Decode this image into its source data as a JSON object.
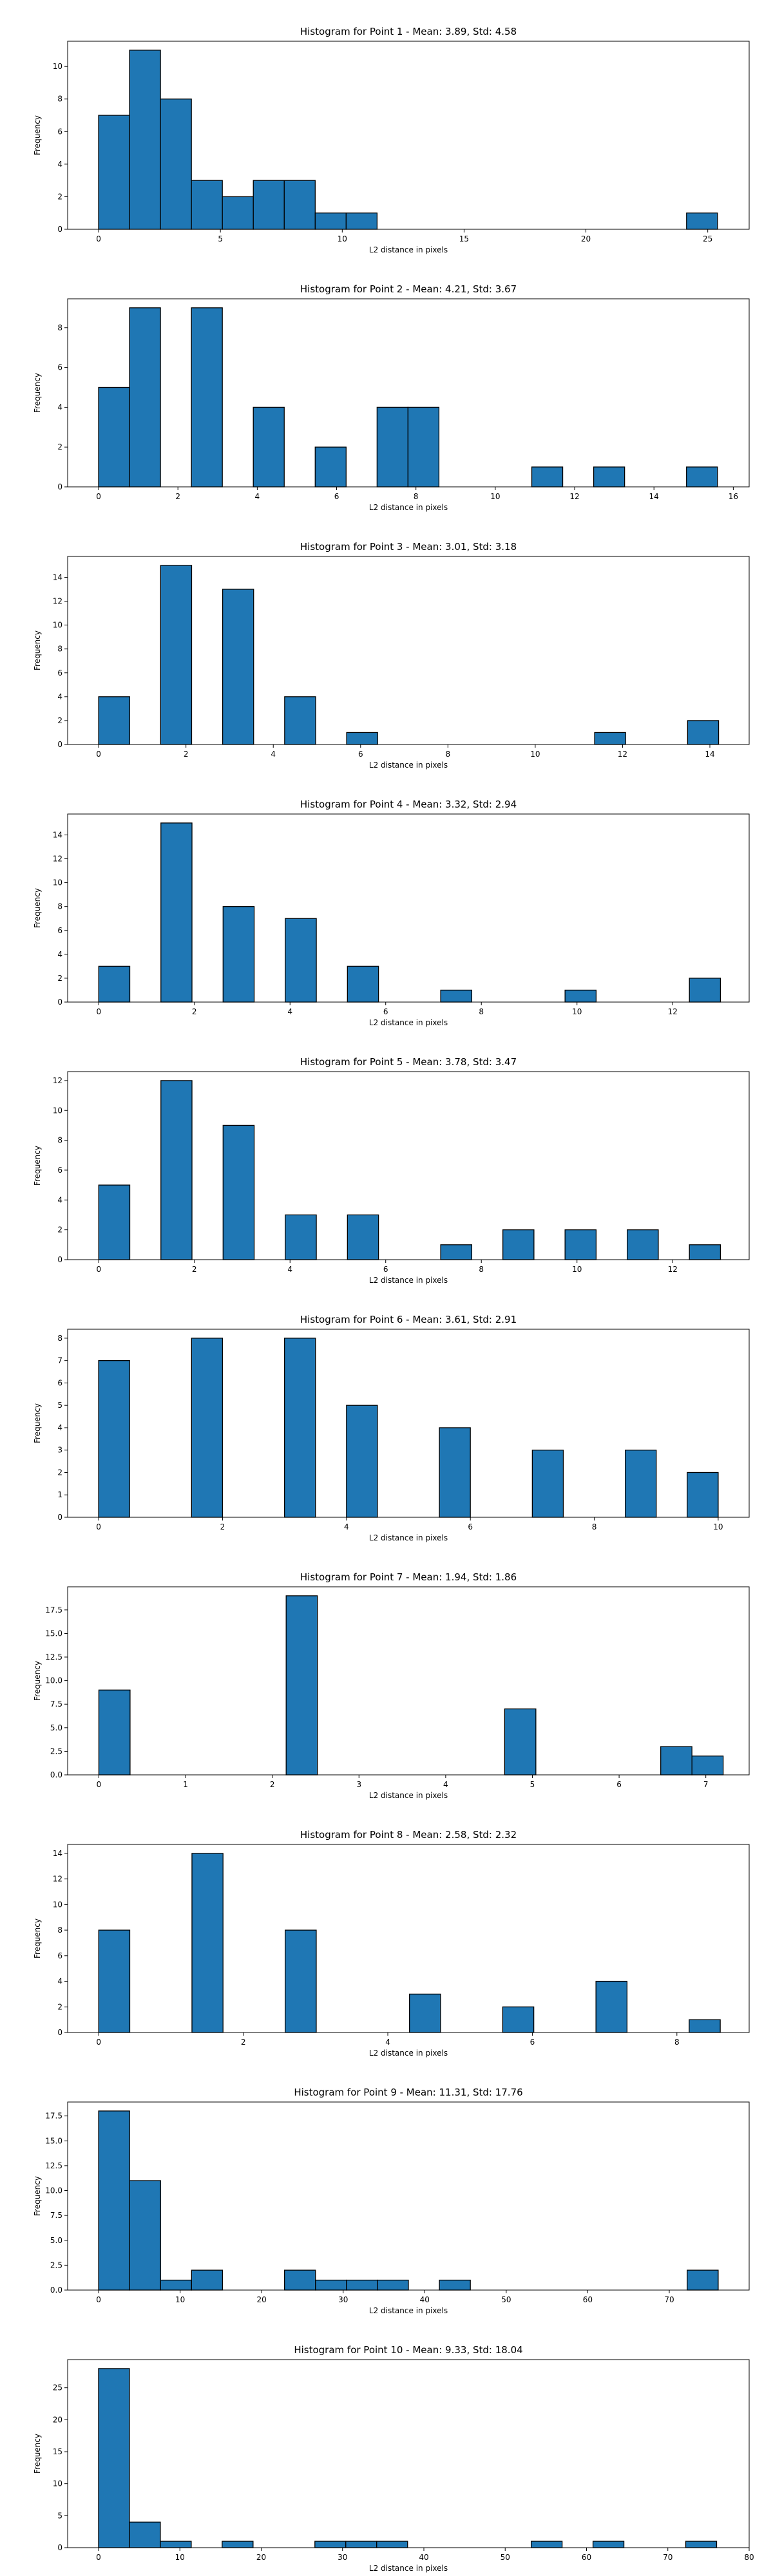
{
  "style": {
    "bar_fill": "#1f77b4",
    "bar_edge": "#000000",
    "axes_color": "#000000"
  },
  "chart_data": [
    {
      "type": "bar",
      "title": "Histogram for Point 1 - Mean: 3.89, Std: 4.58",
      "xlabel": "L2 distance in pixels",
      "ylabel": "Frequency",
      "xlim": [
        -1.27,
        26.7
      ],
      "ylim": [
        0,
        11.55
      ],
      "xticks": [
        0,
        5,
        10,
        15,
        20,
        25
      ],
      "xtick_labels": [
        "0",
        "5",
        "10",
        "15",
        "20",
        "25"
      ],
      "yticks": [
        0,
        2,
        4,
        6,
        8,
        10
      ],
      "ytick_labels": [
        "0",
        "2",
        "4",
        "6",
        "8",
        "10"
      ],
      "bin_start": 0.0,
      "bin_width": 1.27,
      "values": [
        7,
        11,
        8,
        3,
        2,
        3,
        3,
        1,
        1,
        0,
        0,
        0,
        0,
        0,
        0,
        0,
        0,
        0,
        0,
        1
      ]
    },
    {
      "type": "bar",
      "title": "Histogram for Point 2 - Mean: 4.21, Std: 3.67",
      "xlabel": "L2 distance in pixels",
      "ylabel": "Frequency",
      "xlim": [
        -0.78,
        16.4
      ],
      "ylim": [
        0,
        9.45
      ],
      "xticks": [
        0,
        2,
        4,
        6,
        8,
        10,
        12,
        14,
        16
      ],
      "xtick_labels": [
        "0",
        "2",
        "4",
        "6",
        "8",
        "10",
        "12",
        "14",
        "16"
      ],
      "yticks": [
        0,
        2,
        4,
        6,
        8
      ],
      "ytick_labels": [
        "0",
        "2",
        "4",
        "6",
        "8"
      ],
      "bin_start": 0.0,
      "bin_width": 0.78,
      "values": [
        5,
        9,
        0,
        9,
        0,
        4,
        0,
        2,
        0,
        4,
        4,
        0,
        0,
        0,
        1,
        0,
        1,
        0,
        0,
        1
      ]
    },
    {
      "type": "bar",
      "title": "Histogram for Point 3 - Mean: 3.01, Std: 3.18",
      "xlabel": "L2 distance in pixels",
      "ylabel": "Frequency",
      "xlim": [
        -0.71,
        14.9
      ],
      "ylim": [
        0,
        15.75
      ],
      "xticks": [
        0,
        2,
        4,
        6,
        8,
        10,
        12,
        14
      ],
      "xtick_labels": [
        "0",
        "2",
        "4",
        "6",
        "8",
        "10",
        "12",
        "14"
      ],
      "yticks": [
        0,
        2,
        4,
        6,
        8,
        10,
        12,
        14
      ],
      "ytick_labels": [
        "0",
        "2",
        "4",
        "6",
        "8",
        "10",
        "12",
        "14"
      ],
      "bin_start": 0.0,
      "bin_width": 0.71,
      "values": [
        4,
        0,
        15,
        0,
        13,
        0,
        4,
        0,
        1,
        0,
        0,
        0,
        0,
        0,
        0,
        0,
        1,
        0,
        0,
        2
      ]
    },
    {
      "type": "bar",
      "title": "Histogram for Point 4 - Mean: 3.32, Std: 2.94",
      "xlabel": "L2 distance in pixels",
      "ylabel": "Frequency",
      "xlim": [
        -0.65,
        13.6
      ],
      "ylim": [
        0,
        15.75
      ],
      "xticks": [
        0,
        2,
        4,
        6,
        8,
        10,
        12
      ],
      "xtick_labels": [
        "0",
        "2",
        "4",
        "6",
        "8",
        "10",
        "12"
      ],
      "yticks": [
        0,
        2,
        4,
        6,
        8,
        10,
        12,
        14
      ],
      "ytick_labels": [
        "0",
        "2",
        "4",
        "6",
        "8",
        "10",
        "12",
        "14"
      ],
      "bin_start": 0.0,
      "bin_width": 0.65,
      "values": [
        3,
        0,
        15,
        0,
        8,
        0,
        7,
        0,
        3,
        0,
        0,
        1,
        0,
        0,
        0,
        1,
        0,
        0,
        0,
        2
      ]
    },
    {
      "type": "bar",
      "title": "Histogram for Point 5 - Mean: 3.78, Std: 3.47",
      "xlabel": "L2 distance in pixels",
      "ylabel": "Frequency",
      "xlim": [
        -0.65,
        13.6
      ],
      "ylim": [
        0,
        12.6
      ],
      "xticks": [
        0,
        2,
        4,
        6,
        8,
        10,
        12
      ],
      "xtick_labels": [
        "0",
        "2",
        "4",
        "6",
        "8",
        "10",
        "12"
      ],
      "yticks": [
        0,
        2,
        4,
        6,
        8,
        10,
        12
      ],
      "ytick_labels": [
        "0",
        "2",
        "4",
        "6",
        "8",
        "10",
        "12"
      ],
      "bin_start": 0.0,
      "bin_width": 0.65,
      "values": [
        5,
        0,
        12,
        0,
        9,
        0,
        3,
        0,
        3,
        0,
        0,
        1,
        0,
        2,
        0,
        2,
        0,
        2,
        0,
        1
      ]
    },
    {
      "type": "bar",
      "title": "Histogram for Point 6 - Mean: 3.61, Std: 2.91",
      "xlabel": "L2 distance in pixels",
      "ylabel": "Frequency",
      "xlim": [
        -0.5,
        10.5
      ],
      "ylim": [
        0,
        8.4
      ],
      "xticks": [
        0,
        2,
        4,
        6,
        8,
        10
      ],
      "xtick_labels": [
        "0",
        "2",
        "4",
        "6",
        "8",
        "10"
      ],
      "yticks": [
        0,
        1,
        2,
        3,
        4,
        5,
        6,
        7,
        8
      ],
      "ytick_labels": [
        "0",
        "1",
        "2",
        "3",
        "4",
        "5",
        "6",
        "7",
        "8"
      ],
      "bin_start": 0.0,
      "bin_width": 0.5,
      "values": [
        7,
        0,
        0,
        8,
        0,
        0,
        8,
        0,
        5,
        0,
        0,
        4,
        0,
        0,
        3,
        0,
        0,
        3,
        0,
        2
      ]
    },
    {
      "type": "bar",
      "title": "Histogram for Point 7 - Mean: 1.94, Std: 1.86",
      "xlabel": "L2 distance in pixels",
      "ylabel": "Frequency",
      "xlim": [
        -0.36,
        7.5
      ],
      "ylim": [
        0,
        19.95
      ],
      "xticks": [
        0,
        1,
        2,
        3,
        4,
        5,
        6,
        7
      ],
      "xtick_labels": [
        "0",
        "1",
        "2",
        "3",
        "4",
        "5",
        "6",
        "7"
      ],
      "yticks": [
        0,
        2.5,
        5,
        7.5,
        10,
        12.5,
        15,
        17.5
      ],
      "ytick_labels": [
        "0.0",
        "2.5",
        "5.0",
        "7.5",
        "10.0",
        "12.5",
        "15.0",
        "17.5"
      ],
      "bin_start": 0.0,
      "bin_width": 0.36,
      "values": [
        9,
        0,
        0,
        0,
        0,
        0,
        19,
        0,
        0,
        0,
        0,
        0,
        0,
        7,
        0,
        0,
        0,
        0,
        3,
        2
      ]
    },
    {
      "type": "bar",
      "title": "Histogram for Point 8 - Mean: 2.58, Std: 2.32",
      "xlabel": "L2 distance in pixels",
      "ylabel": "Frequency",
      "xlim": [
        -0.43,
        9.0
      ],
      "ylim": [
        0,
        14.7
      ],
      "xticks": [
        0,
        2,
        4,
        6,
        8
      ],
      "xtick_labels": [
        "0",
        "2",
        "4",
        "6",
        "8"
      ],
      "yticks": [
        0,
        2,
        4,
        6,
        8,
        10,
        12,
        14
      ],
      "ytick_labels": [
        "0",
        "2",
        "4",
        "6",
        "8",
        "10",
        "12",
        "14"
      ],
      "bin_start": 0.0,
      "bin_width": 0.43,
      "values": [
        8,
        0,
        0,
        14,
        0,
        0,
        8,
        0,
        0,
        0,
        3,
        0,
        0,
        2,
        0,
        0,
        4,
        0,
        0,
        1
      ]
    },
    {
      "type": "bar",
      "title": "Histogram for Point 9 - Mean: 11.31, Std: 17.76",
      "xlabel": "L2 distance in pixels",
      "ylabel": "Frequency",
      "xlim": [
        -3.8,
        79.8
      ],
      "ylim": [
        0,
        18.9
      ],
      "xticks": [
        0,
        10,
        20,
        30,
        40,
        50,
        60,
        70
      ],
      "xtick_labels": [
        "0",
        "10",
        "20",
        "30",
        "40",
        "50",
        "60",
        "70"
      ],
      "yticks": [
        0,
        2.5,
        5,
        7.5,
        10,
        12.5,
        15,
        17.5
      ],
      "ytick_labels": [
        "0.0",
        "2.5",
        "5.0",
        "7.5",
        "10.0",
        "12.5",
        "15.0",
        "17.5"
      ],
      "bin_start": 0.0,
      "bin_width": 3.8,
      "values": [
        18,
        11,
        1,
        2,
        0,
        0,
        2,
        1,
        1,
        1,
        0,
        1,
        0,
        0,
        0,
        0,
        0,
        0,
        0,
        2
      ]
    },
    {
      "type": "bar",
      "title": "Histogram for Point 10 - Mean: 9.33, Std: 18.04",
      "xlabel": "L2 distance in pixels",
      "ylabel": "Frequency",
      "xlim": [
        -3.8,
        80
      ],
      "ylim": [
        0,
        29.4
      ],
      "xticks": [
        0,
        10,
        20,
        30,
        40,
        50,
        60,
        70,
        80
      ],
      "xtick_labels": [
        "0",
        "10",
        "20",
        "30",
        "40",
        "50",
        "60",
        "70",
        "80"
      ],
      "yticks": [
        0,
        5,
        10,
        15,
        20,
        25
      ],
      "ytick_labels": [
        "0",
        "5",
        "10",
        "15",
        "20",
        "25"
      ],
      "bin_start": 0.0,
      "bin_width": 3.8,
      "values": [
        28,
        4,
        1,
        0,
        1,
        0,
        0,
        1,
        1,
        1,
        0,
        0,
        0,
        0,
        1,
        0,
        1,
        0,
        0,
        1
      ]
    }
  ]
}
